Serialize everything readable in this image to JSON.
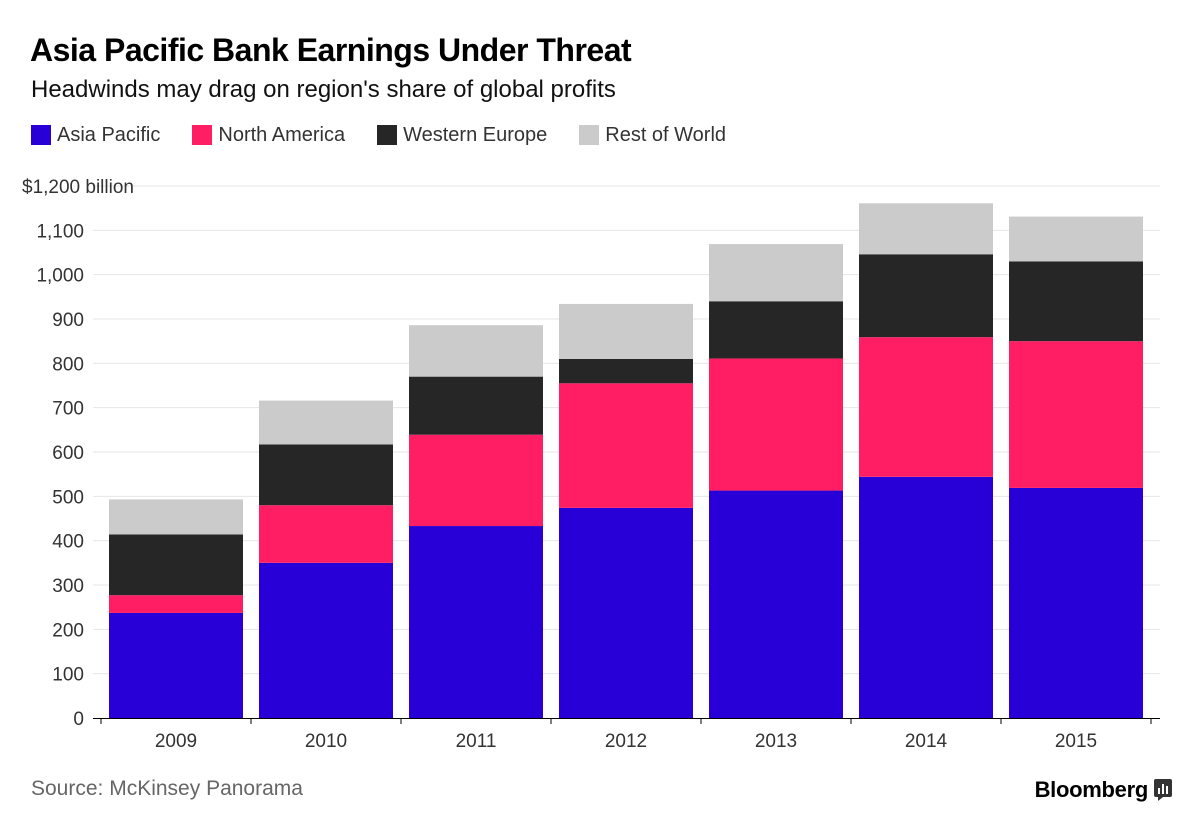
{
  "title": "Asia Pacific Bank Earnings Under Threat",
  "subtitle": "Headwinds may drag on region's share of global profits",
  "legend": [
    {
      "label": "Asia Pacific",
      "color": "#2800d7"
    },
    {
      "label": "North America",
      "color": "#ff1e64"
    },
    {
      "label": "Western Europe",
      "color": "#262626"
    },
    {
      "label": "Rest of World",
      "color": "#cbcbcb"
    }
  ],
  "source": "Source: McKinsey Panorama",
  "brand": {
    "name": "Bloomberg",
    "icon": "bar-chart-icon"
  },
  "chart_data": {
    "type": "bar",
    "stacked": true,
    "categories": [
      "2009",
      "2010",
      "2011",
      "2012",
      "2013",
      "2014",
      "2015"
    ],
    "series": [
      {
        "name": "Asia Pacific",
        "color": "#2800d7",
        "values": [
          237,
          350,
          433,
          474,
          513,
          544,
          519
        ]
      },
      {
        "name": "North America",
        "color": "#ff1e64",
        "values": [
          40,
          130,
          206,
          281,
          298,
          315,
          331
        ]
      },
      {
        "name": "Western Europe",
        "color": "#262626",
        "values": [
          137,
          137,
          131,
          55,
          129,
          187,
          180
        ]
      },
      {
        "name": "Rest of World",
        "color": "#cbcbcb",
        "values": [
          79,
          99,
          116,
          124,
          129,
          115,
          101
        ]
      }
    ],
    "ylim": [
      0,
      1200
    ],
    "yticks": [
      0,
      100,
      200,
      300,
      400,
      500,
      600,
      700,
      800,
      900,
      1000,
      1100,
      1200
    ],
    "ytick_labels": [
      "0",
      "100",
      "200",
      "300",
      "400",
      "500",
      "600",
      "700",
      "800",
      "900",
      "1,000",
      "1,100",
      "$1,200 billion"
    ],
    "grid": true,
    "legend_position": "top-left"
  }
}
